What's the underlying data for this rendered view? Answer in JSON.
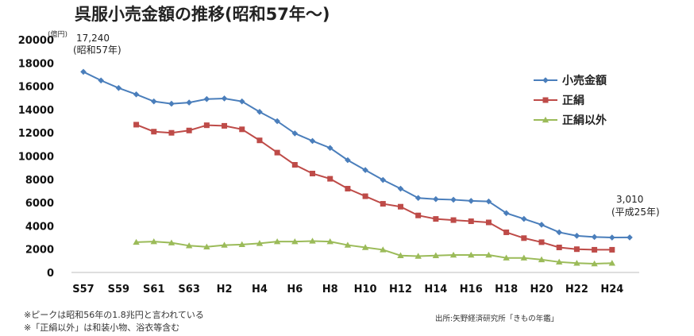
{
  "chart_data": {
    "type": "line",
    "title": "呉服小売金額の推移(昭和57年～)",
    "unit_label": "(億円)",
    "ylim": [
      0,
      20000
    ],
    "y_ticks": [
      0,
      2000,
      4000,
      6000,
      8000,
      10000,
      12000,
      14000,
      16000,
      18000,
      20000
    ],
    "x": [
      "S57",
      "S58",
      "S59",
      "S60",
      "S61",
      "S62",
      "S63",
      "H1",
      "H2",
      "H3",
      "H4",
      "H5",
      "H6",
      "H7",
      "H8",
      "H9",
      "H10",
      "H11",
      "H12",
      "H13",
      "H14",
      "H15",
      "H16",
      "H17",
      "H18",
      "H19",
      "H20",
      "H21",
      "H22",
      "H23",
      "H24",
      "H25"
    ],
    "x_tick_labels": [
      "S57",
      "S59",
      "S61",
      "S63",
      "H2",
      "H4",
      "H6",
      "H8",
      "H10",
      "H12",
      "H14",
      "H16",
      "H18",
      "H20",
      "H22",
      "H24"
    ],
    "series": [
      {
        "name": "小売金額",
        "color": "#4a7ebb",
        "marker": "diamond",
        "values": [
          17240,
          16500,
          15850,
          15300,
          14700,
          14500,
          14600,
          14900,
          14950,
          14700,
          13800,
          13000,
          11950,
          11300,
          10700,
          9650,
          8800,
          7950,
          7200,
          6400,
          6300,
          6250,
          6150,
          6100,
          5100,
          4600,
          4100,
          3450,
          3150,
          3050,
          3000,
          3010
        ]
      },
      {
        "name": "正絹",
        "color": "#be4b48",
        "marker": "square",
        "values": [
          null,
          null,
          null,
          12700,
          12100,
          12000,
          12200,
          12650,
          12600,
          12300,
          11350,
          10300,
          9250,
          8500,
          8050,
          7200,
          6550,
          5900,
          5650,
          4900,
          4600,
          4500,
          4400,
          4300,
          3450,
          2950,
          2600,
          2150,
          2000,
          1950,
          1950,
          null
        ]
      },
      {
        "name": "正絹以外",
        "color": "#9bbb59",
        "marker": "triangle",
        "values": [
          null,
          null,
          null,
          2600,
          2650,
          2550,
          2300,
          2200,
          2350,
          2400,
          2500,
          2650,
          2650,
          2700,
          2650,
          2350,
          2150,
          1950,
          1450,
          1400,
          1450,
          1500,
          1500,
          1500,
          1250,
          1250,
          1100,
          900,
          800,
          750,
          800,
          null
        ]
      }
    ],
    "annotations": [
      {
        "line1": "17,240",
        "line2": "(昭和57年)"
      },
      {
        "line1": "3,010",
        "line2": "(平成25年)"
      }
    ],
    "legend_position": "right",
    "grid": false
  },
  "footnotes": [
    "※ピークは昭和56年の1.8兆円と言われている",
    "※「正絹以外」は和装小物、浴衣等含む"
  ],
  "source": "出所:矢野経済研究所「きもの年鑑」"
}
